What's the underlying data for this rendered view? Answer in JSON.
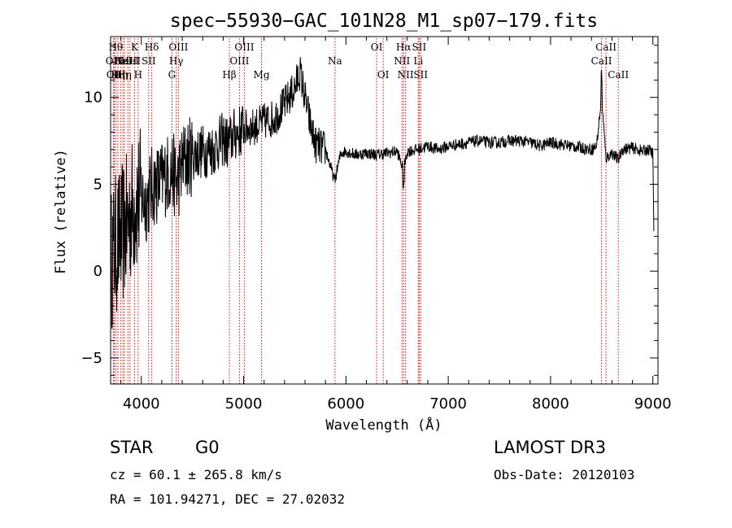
{
  "chart_data": {
    "type": "line",
    "title": "spec−55930−GAC_101N28_M1_sp07−179.fits",
    "xlabel": "Wavelength (Å)",
    "ylabel": "Flux (relative)",
    "xlim": [
      3700,
      9050
    ],
    "ylim": [
      -6.5,
      13.5
    ],
    "xticks": [
      4000,
      5000,
      6000,
      7000,
      8000,
      9000
    ],
    "yticks": [
      -5,
      0,
      5,
      10
    ],
    "grid": false,
    "line_color": "#ff0000",
    "spectrum_color": "#000000",
    "series": [
      {
        "name": "flux",
        "x": [
          3700,
          3750,
          3800,
          3850,
          3900,
          3950,
          4000,
          4050,
          4100,
          4150,
          4200,
          4250,
          4300,
          4350,
          4400,
          4450,
          4500,
          4600,
          4700,
          4800,
          4850,
          4900,
          5000,
          5100,
          5200,
          5300,
          5400,
          5500,
          5550,
          5600,
          5650,
          5700,
          5800,
          5890,
          5950,
          6000,
          6100,
          6200,
          6300,
          6400,
          6500,
          6563,
          6600,
          6700,
          6800,
          6900,
          7000,
          7100,
          7200,
          7300,
          7400,
          7500,
          7600,
          7700,
          7800,
          7900,
          8000,
          8100,
          8200,
          8300,
          8400,
          8450,
          8498,
          8542,
          8600,
          8662,
          8700,
          8800,
          8900,
          8950,
          9000,
          9010
        ],
        "y": [
          0.5,
          1.5,
          2.0,
          2.5,
          3.5,
          4.0,
          4.2,
          4.0,
          4.8,
          5.0,
          5.2,
          5.6,
          5.8,
          5.0,
          6.2,
          6.5,
          6.7,
          6.9,
          7.0,
          7.6,
          7.3,
          7.8,
          8.2,
          8.3,
          8.6,
          8.8,
          9.6,
          10.5,
          11.5,
          10.0,
          8.5,
          7.3,
          7.0,
          5.2,
          6.8,
          6.9,
          6.7,
          6.8,
          6.7,
          6.8,
          6.9,
          5.8,
          6.9,
          7.0,
          7.2,
          7.0,
          7.2,
          7.3,
          7.4,
          7.5,
          7.4,
          7.4,
          7.5,
          7.5,
          7.4,
          7.2,
          7.4,
          7.3,
          7.2,
          7.1,
          7.0,
          7.2,
          10.0,
          6.5,
          6.8,
          6.4,
          7.0,
          7.1,
          6.9,
          7.0,
          6.8,
          2.0
        ]
      }
    ],
    "lines": [
      {
        "wl": 3727,
        "label": "OII",
        "row": 2
      },
      {
        "wl": 3735,
        "label": "OII",
        "row": 3
      },
      {
        "wl": 3750,
        "label": "Hθ",
        "row": 1
      },
      {
        "wl": 3771,
        "label": "Hη",
        "row": 3
      },
      {
        "wl": 3798,
        "label": "Hη",
        "row": 3
      },
      {
        "wl": 3820,
        "label": "HeI",
        "row": 2
      },
      {
        "wl": 3835,
        "label": "Hη",
        "row": 3
      },
      {
        "wl": 3869,
        "label": "NeIII",
        "row": 2
      },
      {
        "wl": 3889,
        "label": "HeI",
        "row": 2
      },
      {
        "wl": 3934,
        "label": "K",
        "row": 1
      },
      {
        "wl": 3969,
        "label": "H",
        "row": 3
      },
      {
        "wl": 4072,
        "label": "SII",
        "row": 2
      },
      {
        "wl": 4102,
        "label": "Hδ",
        "row": 1
      },
      {
        "wl": 4300,
        "label": "G",
        "row": 3
      },
      {
        "wl": 4341,
        "label": "Hγ",
        "row": 2
      },
      {
        "wl": 4363,
        "label": "OIII",
        "row": 1
      },
      {
        "wl": 4861,
        "label": "Hβ",
        "row": 3
      },
      {
        "wl": 4959,
        "label": "OIII",
        "row": 2
      },
      {
        "wl": 5007,
        "label": "OIII",
        "row": 1
      },
      {
        "wl": 5175,
        "label": "Mg",
        "row": 3
      },
      {
        "wl": 5893,
        "label": "Na",
        "row": 2
      },
      {
        "wl": 6300,
        "label": "OI",
        "row": 1
      },
      {
        "wl": 6364,
        "label": "OI",
        "row": 3
      },
      {
        "wl": 6548,
        "label": "NII",
        "row": 2
      },
      {
        "wl": 6563,
        "label": "Hα",
        "row": 1
      },
      {
        "wl": 6583,
        "label": "NII",
        "row": 3
      },
      {
        "wl": 6707,
        "label": "Li",
        "row": 2
      },
      {
        "wl": 6716,
        "label": "SII",
        "row": 1
      },
      {
        "wl": 6731,
        "label": "SII",
        "row": 3
      },
      {
        "wl": 8498,
        "label": "CaII",
        "row": 2
      },
      {
        "wl": 8542,
        "label": "CaII",
        "row": 1
      },
      {
        "wl": 8662,
        "label": "CaII",
        "row": 3
      }
    ]
  },
  "info": {
    "class": "STAR",
    "subclass": "G0",
    "survey": "LAMOST DR3",
    "cz": "cz = 60.1 ± 265.8 km/s",
    "obs_date": "Obs-Date: 20120103",
    "coords": "RA = 101.94271, DEC =  27.02032"
  }
}
